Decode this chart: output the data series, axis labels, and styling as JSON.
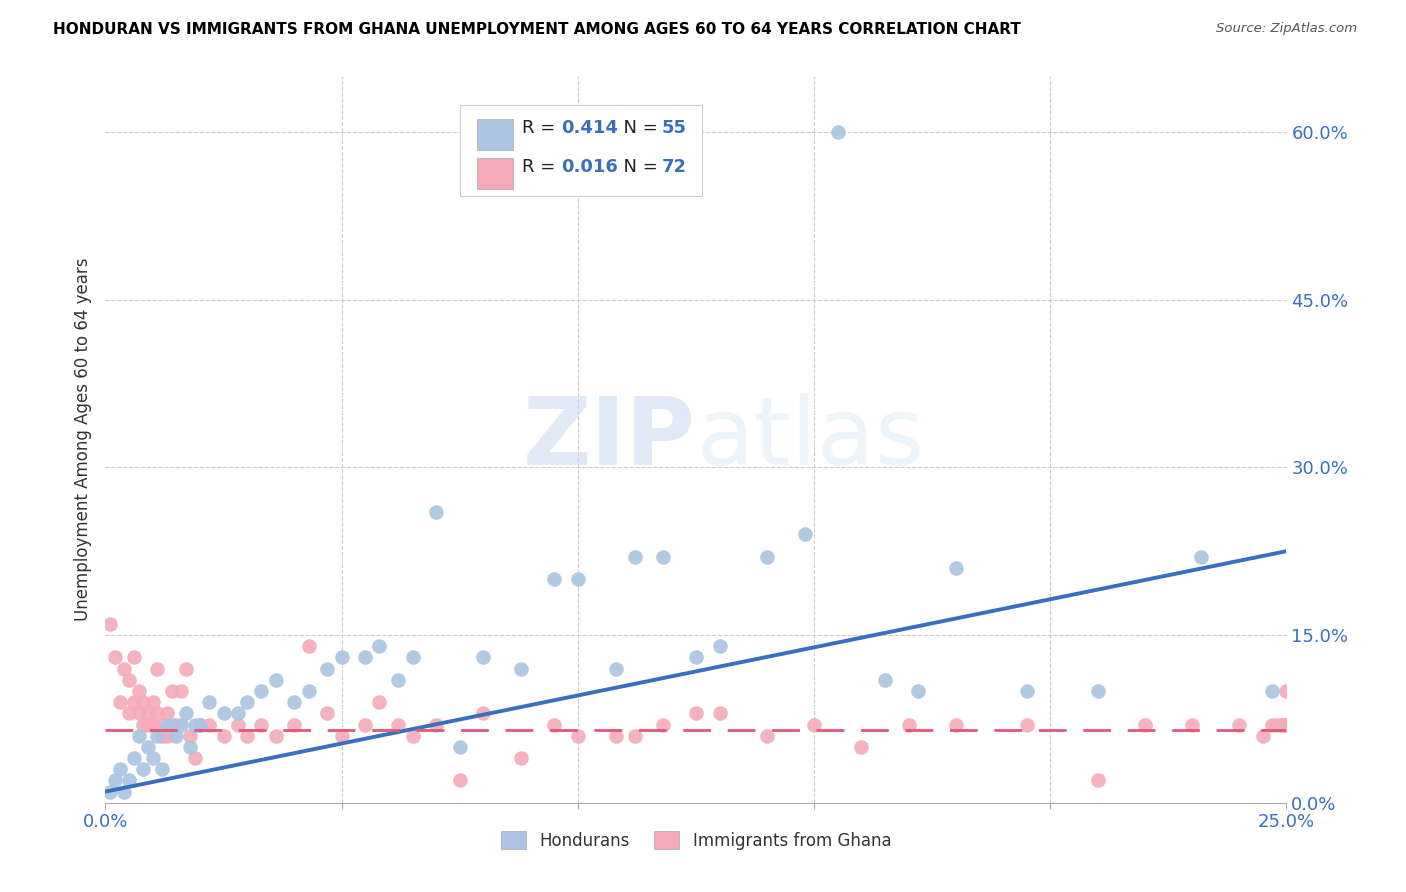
{
  "title": "HONDURAN VS IMMIGRANTS FROM GHANA UNEMPLOYMENT AMONG AGES 60 TO 64 YEARS CORRELATION CHART",
  "source": "Source: ZipAtlas.com",
  "ylabel": "Unemployment Among Ages 60 to 64 years",
  "xlim": [
    0.0,
    0.25
  ],
  "ylim": [
    0.0,
    0.65
  ],
  "y_tick_labels_right": [
    "60.0%",
    "45.0%",
    "30.0%",
    "15.0%",
    "0.0%"
  ],
  "y_tick_values_right": [
    0.6,
    0.45,
    0.3,
    0.15,
    0.0
  ],
  "hondurans_color": "#aac4e2",
  "ghana_color": "#f5aab8",
  "line_hondurans_color": "#3a6fbe",
  "line_ghana_color": "#e05878",
  "R_hondurans": "0.414",
  "N_hondurans": "55",
  "R_ghana": "0.016",
  "N_ghana": "72",
  "hon_line_start_y": 0.01,
  "hon_line_end_y": 0.225,
  "gha_line_y": 0.065,
  "hondurans_x": [
    0.001,
    0.002,
    0.003,
    0.004,
    0.005,
    0.006,
    0.007,
    0.008,
    0.009,
    0.01,
    0.011,
    0.012,
    0.013,
    0.014,
    0.015,
    0.016,
    0.017,
    0.018,
    0.019,
    0.02,
    0.022,
    0.025,
    0.028,
    0.03,
    0.033,
    0.036,
    0.04,
    0.043,
    0.047,
    0.05,
    0.055,
    0.058,
    0.062,
    0.065,
    0.07,
    0.075,
    0.08,
    0.088,
    0.095,
    0.1,
    0.108,
    0.112,
    0.118,
    0.125,
    0.13,
    0.14,
    0.148,
    0.155,
    0.165,
    0.172,
    0.18,
    0.195,
    0.21,
    0.232,
    0.247
  ],
  "hondurans_y": [
    0.01,
    0.02,
    0.03,
    0.01,
    0.02,
    0.04,
    0.06,
    0.03,
    0.05,
    0.04,
    0.06,
    0.03,
    0.07,
    0.07,
    0.06,
    0.07,
    0.08,
    0.05,
    0.07,
    0.07,
    0.09,
    0.08,
    0.08,
    0.09,
    0.1,
    0.11,
    0.09,
    0.1,
    0.12,
    0.13,
    0.13,
    0.14,
    0.11,
    0.13,
    0.26,
    0.05,
    0.13,
    0.12,
    0.2,
    0.2,
    0.12,
    0.22,
    0.22,
    0.13,
    0.14,
    0.22,
    0.24,
    0.6,
    0.11,
    0.1,
    0.21,
    0.1,
    0.1,
    0.22,
    0.1
  ],
  "ghana_x": [
    0.001,
    0.002,
    0.003,
    0.004,
    0.005,
    0.005,
    0.006,
    0.006,
    0.007,
    0.007,
    0.008,
    0.008,
    0.009,
    0.009,
    0.01,
    0.01,
    0.011,
    0.011,
    0.012,
    0.012,
    0.013,
    0.013,
    0.014,
    0.015,
    0.016,
    0.017,
    0.018,
    0.019,
    0.02,
    0.022,
    0.025,
    0.028,
    0.03,
    0.033,
    0.036,
    0.04,
    0.043,
    0.047,
    0.05,
    0.055,
    0.058,
    0.062,
    0.065,
    0.07,
    0.075,
    0.08,
    0.088,
    0.095,
    0.1,
    0.108,
    0.112,
    0.118,
    0.125,
    0.13,
    0.14,
    0.15,
    0.16,
    0.17,
    0.18,
    0.195,
    0.21,
    0.22,
    0.23,
    0.24,
    0.245,
    0.247,
    0.248,
    0.249,
    0.249,
    0.25,
    0.25,
    0.25
  ],
  "ghana_y": [
    0.16,
    0.13,
    0.09,
    0.12,
    0.08,
    0.11,
    0.09,
    0.13,
    0.08,
    0.1,
    0.07,
    0.09,
    0.07,
    0.08,
    0.07,
    0.09,
    0.08,
    0.12,
    0.06,
    0.07,
    0.08,
    0.06,
    0.1,
    0.07,
    0.1,
    0.12,
    0.06,
    0.04,
    0.07,
    0.07,
    0.06,
    0.07,
    0.06,
    0.07,
    0.06,
    0.07,
    0.14,
    0.08,
    0.06,
    0.07,
    0.09,
    0.07,
    0.06,
    0.07,
    0.02,
    0.08,
    0.04,
    0.07,
    0.06,
    0.06,
    0.06,
    0.07,
    0.08,
    0.08,
    0.06,
    0.07,
    0.05,
    0.07,
    0.07,
    0.07,
    0.02,
    0.07,
    0.07,
    0.07,
    0.06,
    0.07,
    0.07,
    0.07,
    0.07,
    0.07,
    0.07,
    0.1
  ]
}
